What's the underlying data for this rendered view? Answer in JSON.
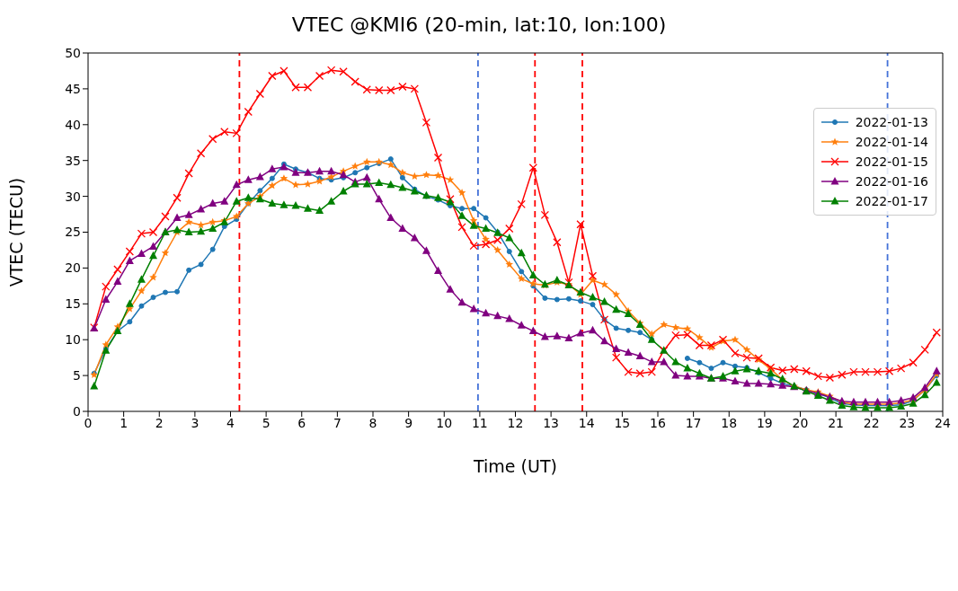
{
  "chart_data": {
    "type": "line",
    "title": "VTEC @KMI6 (20-min, lat:10, lon:100)",
    "xlabel": "Time (UT)",
    "ylabel": "VTEC (TECU)",
    "x": [
      0.17,
      0.5,
      0.83,
      1.17,
      1.5,
      1.83,
      2.17,
      2.5,
      2.83,
      3.17,
      3.5,
      3.83,
      4.17,
      4.5,
      4.83,
      5.17,
      5.5,
      5.83,
      6.17,
      6.5,
      6.83,
      7.17,
      7.5,
      7.83,
      8.17,
      8.5,
      8.83,
      9.17,
      9.5,
      9.83,
      10.17,
      10.5,
      10.83,
      11.17,
      11.5,
      11.83,
      12.17,
      12.5,
      12.83,
      13.17,
      13.5,
      13.83,
      14.17,
      14.5,
      14.83,
      15.17,
      15.5,
      15.83,
      16.17,
      16.5,
      16.83,
      17.17,
      17.5,
      17.83,
      18.17,
      18.5,
      18.83,
      19.17,
      19.5,
      19.83,
      20.17,
      20.5,
      20.83,
      21.17,
      21.5,
      21.83,
      22.17,
      22.5,
      22.83,
      23.17,
      23.5,
      23.83
    ],
    "series": [
      {
        "name": "2022-01-13",
        "color": "#1f77b4",
        "marker": "circle",
        "values": [
          5.3,
          8.7,
          11.2,
          12.5,
          14.7,
          15.9,
          16.6,
          16.7,
          19.7,
          20.5,
          22.6,
          25.8,
          26.8,
          29.0,
          30.8,
          32.5,
          34.5,
          33.8,
          33.3,
          32.5,
          32.3,
          32.6,
          33.3,
          34.0,
          34.6,
          35.2,
          32.6,
          31.0,
          30.0,
          29.5,
          28.7,
          28.3,
          28.3,
          27.0,
          25.0,
          22.3,
          19.5,
          17.5,
          15.8,
          15.6,
          15.7,
          15.4,
          14.9,
          12.8,
          11.6,
          11.3,
          11.0,
          10.0,
          null,
          null,
          7.4,
          6.8,
          6.0,
          6.8,
          6.3,
          6.1,
          5.4,
          4.6,
          3.9,
          3.5,
          3.0,
          2.5,
          1.9,
          1.1,
          0.9,
          0.8,
          0.8,
          0.8,
          0.9,
          1.5,
          3.0,
          5.0
        ]
      },
      {
        "name": "2022-01-14",
        "color": "#ff7f0e",
        "marker": "star",
        "values": [
          5.1,
          9.3,
          11.8,
          14.3,
          16.8,
          18.7,
          22.1,
          25.0,
          26.4,
          26.0,
          26.4,
          26.6,
          27.2,
          29.0,
          30.0,
          31.5,
          32.5,
          31.6,
          31.7,
          32.1,
          32.7,
          33.5,
          34.2,
          34.8,
          34.8,
          34.4,
          33.3,
          32.8,
          33.0,
          32.9,
          32.3,
          30.5,
          26.6,
          24.0,
          22.5,
          20.5,
          18.5,
          17.8,
          17.6,
          18.0,
          17.7,
          16.3,
          18.3,
          17.7,
          16.3,
          14.0,
          12.3,
          10.8,
          12.1,
          11.7,
          11.5,
          10.3,
          8.9,
          9.8,
          10.0,
          8.6,
          7.2,
          5.9,
          4.4,
          3.5,
          3.0,
          2.7,
          2.1,
          1.3,
          1.0,
          1.0,
          1.0,
          1.0,
          1.2,
          1.6,
          3.0,
          5.2
        ]
      },
      {
        "name": "2022-01-15",
        "color": "#ff0000",
        "marker": "cross",
        "values": [
          11.7,
          17.4,
          19.8,
          22.3,
          24.8,
          25.0,
          27.2,
          29.8,
          33.2,
          36.0,
          38.0,
          39.0,
          38.8,
          41.8,
          44.3,
          46.8,
          47.5,
          45.2,
          45.2,
          46.8,
          47.6,
          47.4,
          46.0,
          44.9,
          44.8,
          44.8,
          45.3,
          45.0,
          40.3,
          35.4,
          29.6,
          25.7,
          23.1,
          23.3,
          23.9,
          25.5,
          28.9,
          34.0,
          27.4,
          23.6,
          18.0,
          26.1,
          18.9,
          12.8,
          7.5,
          5.5,
          5.3,
          5.5,
          8.5,
          10.6,
          10.7,
          9.2,
          9.2,
          10.0,
          8.1,
          7.5,
          7.4,
          6.1,
          5.7,
          5.9,
          5.6,
          4.9,
          4.7,
          5.1,
          5.5,
          5.5,
          5.5,
          5.6,
          6.0,
          6.8,
          8.6,
          11.0
        ]
      },
      {
        "name": "2022-01-16",
        "color": "#800080",
        "marker": "triangle",
        "values": [
          11.6,
          15.6,
          18.1,
          21.0,
          22.0,
          23.0,
          25.0,
          27.0,
          27.4,
          28.2,
          29.0,
          29.3,
          31.6,
          32.3,
          32.7,
          33.8,
          34.1,
          33.3,
          33.3,
          33.5,
          33.5,
          33.0,
          32.0,
          32.6,
          29.6,
          27.0,
          25.5,
          24.2,
          22.4,
          19.6,
          17.0,
          15.2,
          14.3,
          13.7,
          13.3,
          12.9,
          12.0,
          11.2,
          10.4,
          10.5,
          10.2,
          10.9,
          11.3,
          9.8,
          8.7,
          8.2,
          7.7,
          6.9,
          6.9,
          5.0,
          4.9,
          4.9,
          4.6,
          4.6,
          4.2,
          3.9,
          3.9,
          3.8,
          3.6,
          3.4,
          2.9,
          2.5,
          2.0,
          1.4,
          1.3,
          1.3,
          1.3,
          1.3,
          1.5,
          1.9,
          3.3,
          5.6
        ]
      },
      {
        "name": "2022-01-17",
        "color": "#008000",
        "marker": "triangle",
        "values": [
          3.5,
          8.5,
          11.2,
          15.0,
          18.4,
          21.7,
          25.0,
          25.3,
          25.0,
          25.1,
          25.5,
          26.4,
          29.3,
          29.8,
          29.6,
          29.0,
          28.8,
          28.7,
          28.3,
          28.0,
          29.3,
          30.7,
          31.7,
          31.7,
          31.9,
          31.6,
          31.2,
          30.7,
          30.1,
          29.8,
          29.2,
          27.3,
          25.9,
          25.5,
          24.9,
          24.2,
          22.1,
          19.0,
          17.7,
          18.3,
          17.6,
          16.6,
          15.9,
          15.3,
          14.2,
          13.6,
          12.1,
          10.0,
          8.5,
          6.9,
          6.0,
          5.3,
          4.6,
          4.9,
          5.6,
          5.9,
          5.6,
          5.3,
          4.5,
          3.5,
          2.8,
          2.2,
          1.5,
          0.8,
          0.6,
          0.5,
          0.5,
          0.5,
          0.7,
          1.1,
          2.3,
          4.0
        ]
      }
    ],
    "xlim": [
      0,
      24
    ],
    "xticks": [
      0,
      1,
      2,
      3,
      4,
      5,
      6,
      7,
      8,
      9,
      10,
      11,
      12,
      13,
      14,
      15,
      16,
      17,
      18,
      19,
      20,
      21,
      22,
      23,
      24
    ],
    "ylim": [
      0,
      50
    ],
    "yticks": [
      0,
      5,
      10,
      15,
      20,
      25,
      30,
      35,
      40,
      45,
      50
    ],
    "ref_lines": [
      {
        "axis": "x",
        "value": 4.25,
        "color": "#ff0000",
        "line_style": "dashed"
      },
      {
        "axis": "x",
        "value": 10.95,
        "color": "#4472d8",
        "line_style": "dashed"
      },
      {
        "axis": "x",
        "value": 12.55,
        "color": "#ff0000",
        "line_style": "dashed"
      },
      {
        "axis": "x",
        "value": 13.88,
        "color": "#ff0000",
        "line_style": "dashed"
      },
      {
        "axis": "x",
        "value": 22.45,
        "color": "#4472d8",
        "line_style": "dashed"
      }
    ],
    "grid": false,
    "legend": "top right",
    "line_style": "solid"
  }
}
